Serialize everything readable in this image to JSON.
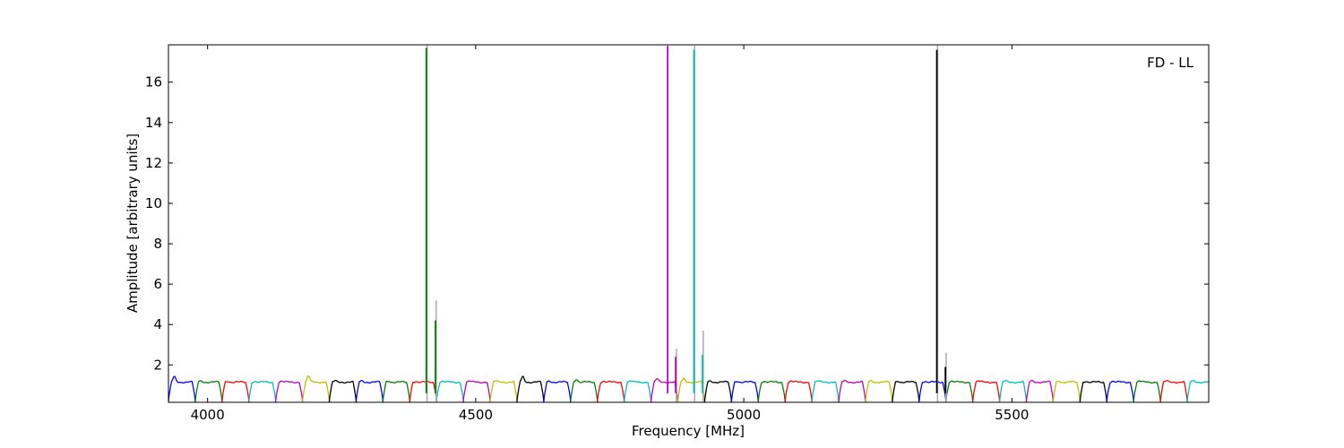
{
  "chart_data": {
    "type": "line",
    "title": "",
    "annotation": "FD - LL",
    "xlabel": "Frequency [MHz]",
    "ylabel": "Amplitude [arbitrary units]",
    "xlim": [
      3927,
      5867
    ],
    "ylim": [
      0.15,
      17.85
    ],
    "xticks": [
      4000,
      4500,
      5000,
      5500
    ],
    "xtick_labels": [
      "4000",
      "4500",
      "5000",
      "5500"
    ],
    "yticks": [
      2,
      4,
      6,
      8,
      10,
      12,
      14,
      16
    ],
    "ytick_labels": [
      "2",
      "4",
      "6",
      "8",
      "10",
      "12",
      "14",
      "16"
    ],
    "grid": false,
    "legend": "none",
    "channel_width_mhz": 50,
    "channels_per_subband": 8,
    "passband_level": 1.15,
    "colors": [
      "#0000ff",
      "#008000",
      "#ff0000",
      "#00bfbf",
      "#bf00bf",
      "#bfbf00",
      "#000000"
    ],
    "subbands": [
      {
        "start": 3927,
        "color": "#0000ff",
        "peak": 1.4
      },
      {
        "start": 3977,
        "color": "#008000",
        "peak": 1.2
      },
      {
        "start": 4027,
        "color": "#ff0000",
        "peak": 1.2
      },
      {
        "start": 4077,
        "color": "#00bfbf",
        "peak": 1.2
      },
      {
        "start": 4127,
        "color": "#bf00bf",
        "peak": 1.2
      },
      {
        "start": 4177,
        "color": "#bfbf00",
        "peak": 1.45
      },
      {
        "start": 4227,
        "color": "#000000",
        "peak": 1.2
      },
      {
        "start": 4277,
        "color": "#0000ff",
        "peak": 1.2
      },
      {
        "start": 4327,
        "color": "#008000",
        "peak": 1.2
      },
      {
        "start": 4377,
        "color": "#ff0000",
        "peak": 1.2
      },
      {
        "start": 4427,
        "color": "#00bfbf",
        "peak": 1.2
      },
      {
        "start": 4477,
        "color": "#bf00bf",
        "peak": 1.2
      },
      {
        "start": 4527,
        "color": "#bfbf00",
        "peak": 1.2
      },
      {
        "start": 4577,
        "color": "#000000",
        "peak": 1.4
      },
      {
        "start": 4627,
        "color": "#0000ff",
        "peak": 1.2
      },
      {
        "start": 4677,
        "color": "#008000",
        "peak": 1.3
      },
      {
        "start": 4727,
        "color": "#ff0000",
        "peak": 1.2
      },
      {
        "start": 4777,
        "color": "#00bfbf",
        "peak": 1.2
      },
      {
        "start": 4827,
        "color": "#bf00bf",
        "peak": 1.3
      },
      {
        "start": 4877,
        "color": "#bfbf00",
        "peak": 1.3
      },
      {
        "start": 4927,
        "color": "#000000",
        "peak": 1.2
      },
      {
        "start": 4977,
        "color": "#0000ff",
        "peak": 1.2
      },
      {
        "start": 5027,
        "color": "#008000",
        "peak": 1.2
      },
      {
        "start": 5077,
        "color": "#ff0000",
        "peak": 1.2
      },
      {
        "start": 5127,
        "color": "#00bfbf",
        "peak": 1.2
      },
      {
        "start": 5177,
        "color": "#bf00bf",
        "peak": 1.2
      },
      {
        "start": 5227,
        "color": "#bfbf00",
        "peak": 1.2
      },
      {
        "start": 5277,
        "color": "#000000",
        "peak": 1.2
      },
      {
        "start": 5327,
        "color": "#0000ff",
        "peak": 1.2
      },
      {
        "start": 5377,
        "color": "#008000",
        "peak": 1.2
      },
      {
        "start": 5427,
        "color": "#ff0000",
        "peak": 1.2
      },
      {
        "start": 5477,
        "color": "#00bfbf",
        "peak": 1.2
      },
      {
        "start": 5527,
        "color": "#bf00bf",
        "peak": 1.2
      },
      {
        "start": 5577,
        "color": "#bfbf00",
        "peak": 1.2
      },
      {
        "start": 5627,
        "color": "#000000",
        "peak": 1.2
      },
      {
        "start": 5677,
        "color": "#0000ff",
        "peak": 1.2
      },
      {
        "start": 5727,
        "color": "#008000",
        "peak": 1.2
      },
      {
        "start": 5777,
        "color": "#ff0000",
        "peak": 1.2
      },
      {
        "start": 5827,
        "color": "#00bfbf",
        "peak": 1.2
      }
    ],
    "spikes": [
      {
        "x": 4408,
        "y": 17.7,
        "color": "#008000"
      },
      {
        "x": 4425,
        "y": 4.2,
        "color": "#008000"
      },
      {
        "x": 4858,
        "y": 17.8,
        "color": "#bf00bf"
      },
      {
        "x": 4873,
        "y": 2.4,
        "color": "#bf00bf"
      },
      {
        "x": 4907,
        "y": 17.6,
        "color": "#00bfbf"
      },
      {
        "x": 4923,
        "y": 2.5,
        "color": "#00bfbf"
      },
      {
        "x": 5360,
        "y": 17.6,
        "color": "#000000"
      },
      {
        "x": 5376,
        "y": 1.9,
        "color": "#000000"
      }
    ],
    "reference_spikes": [
      {
        "x": 4408,
        "y": 17.85,
        "color": "#b0b0b0"
      },
      {
        "x": 4425,
        "y": 5.2,
        "color": "#b0b0b0"
      },
      {
        "x": 4873,
        "y": 2.8,
        "color": "#b0b0b0"
      },
      {
        "x": 4907,
        "y": 17.8,
        "color": "#b0b0b0"
      },
      {
        "x": 4923,
        "y": 3.7,
        "color": "#b0b0b0"
      },
      {
        "x": 5360,
        "y": 17.85,
        "color": "#b0b0b0"
      },
      {
        "x": 5376,
        "y": 2.6,
        "color": "#b0b0b0"
      }
    ]
  }
}
